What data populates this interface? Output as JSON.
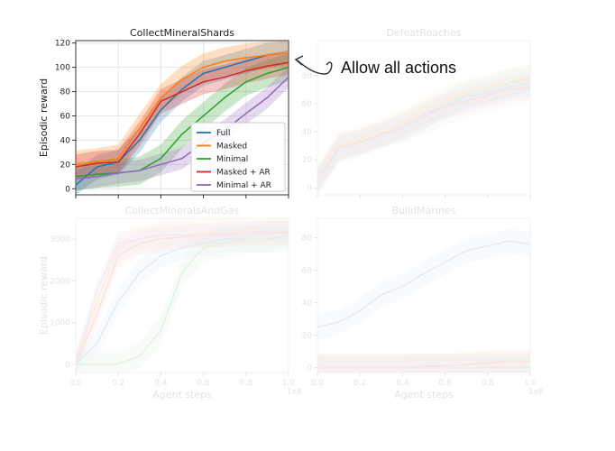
{
  "annotation": {
    "text": "Allow all actions"
  },
  "palette": {
    "Full": "#1f77b4",
    "Masked": "#ff7f0e",
    "Minimal": "#2ca02c",
    "Masked + AR": "#d62728",
    "Minimal + AR": "#9467bd"
  },
  "chart_data": [
    {
      "type": "line",
      "title": "CollectMineralShards",
      "ylabel": "Episodic reward",
      "xlabel": "",
      "xlim": [
        0,
        1
      ],
      "ylim": [
        -5,
        122
      ],
      "yticks": [
        0,
        20,
        40,
        60,
        80,
        100,
        120
      ],
      "grid": true,
      "legend": "bottom-right",
      "x": [
        0,
        0.1,
        0.2,
        0.3,
        0.4,
        0.5,
        0.6,
        0.7,
        0.8,
        0.9,
        1.0
      ],
      "series": [
        {
          "name": "Full",
          "values": [
            3,
            18,
            22,
            40,
            65,
            82,
            95,
            100,
            105,
            110,
            112
          ]
        },
        {
          "name": "Masked",
          "values": [
            20,
            22,
            25,
            50,
            75,
            90,
            100,
            105,
            108,
            110,
            112
          ]
        },
        {
          "name": "Minimal",
          "values": [
            10,
            12,
            13,
            15,
            25,
            45,
            60,
            75,
            88,
            95,
            100
          ]
        },
        {
          "name": "Masked + AR",
          "values": [
            18,
            21,
            22,
            45,
            72,
            80,
            88,
            92,
            97,
            101,
            104
          ]
        },
        {
          "name": "Minimal + AR",
          "values": [
            8,
            10,
            13,
            15,
            20,
            25,
            38,
            48,
            62,
            75,
            92
          ]
        }
      ]
    },
    {
      "type": "line",
      "title": "DefeatRoaches",
      "xlim": [
        0,
        1
      ],
      "ylim": [
        -5,
        105
      ],
      "yticks": [
        0,
        20,
        40,
        60,
        80
      ],
      "x": [
        0,
        0.1,
        0.2,
        0.3,
        0.4,
        0.5,
        0.6,
        0.7,
        0.8,
        0.9,
        1.0
      ],
      "series": [
        {
          "name": "Full",
          "values": [
            5,
            28,
            33,
            38,
            42,
            50,
            58,
            65,
            68,
            72,
            75
          ]
        },
        {
          "name": "Masked",
          "values": [
            5,
            30,
            34,
            40,
            45,
            55,
            62,
            68,
            72,
            75,
            80
          ]
        },
        {
          "name": "Minimal",
          "values": [
            5,
            28,
            32,
            38,
            44,
            52,
            60,
            66,
            70,
            75,
            78
          ]
        },
        {
          "name": "Masked + AR",
          "values": [
            5,
            29,
            33,
            38,
            44,
            52,
            58,
            62,
            66,
            70,
            72
          ]
        },
        {
          "name": "Minimal + AR",
          "values": [
            5,
            26,
            30,
            36,
            40,
            46,
            52,
            58,
            62,
            66,
            70
          ]
        }
      ]
    },
    {
      "type": "line",
      "title": "CollectMineralsAndGas",
      "ylabel": "Episodic reward",
      "xlabel": "Agent steps",
      "xlim": [
        0,
        1
      ],
      "ylim": [
        -200,
        3500
      ],
      "yticks": [
        0,
        1000,
        2000,
        3000
      ],
      "xticks": [
        "0.0",
        "0.2",
        "0.4",
        "0.6",
        "0.8",
        "1.0"
      ],
      "xscale_label": "1e8",
      "x": [
        0,
        0.1,
        0.2,
        0.3,
        0.4,
        0.5,
        0.6,
        0.7,
        0.8,
        0.9,
        1.0
      ],
      "series": [
        {
          "name": "Full",
          "values": [
            0,
            500,
            1500,
            2200,
            2600,
            2800,
            2900,
            3000,
            3000,
            3000,
            3100
          ]
        },
        {
          "name": "Masked",
          "values": [
            0,
            1500,
            2800,
            3000,
            3100,
            3100,
            3150,
            3150,
            3200,
            3200,
            3200
          ]
        },
        {
          "name": "Minimal",
          "values": [
            0,
            0,
            0,
            200,
            800,
            2200,
            2800,
            2900,
            3000,
            3000,
            3000
          ]
        },
        {
          "name": "Masked + AR",
          "values": [
            0,
            1200,
            2600,
            2900,
            3000,
            3050,
            3100,
            3100,
            3150,
            3150,
            3150
          ]
        },
        {
          "name": "Minimal + AR",
          "values": [
            0,
            1800,
            2900,
            3000,
            3100,
            3100,
            3100,
            3150,
            3150,
            3200,
            3200
          ]
        }
      ]
    },
    {
      "type": "line",
      "title": "BuildMarines",
      "xlabel": "Agent steps",
      "xlim": [
        0,
        1
      ],
      "ylim": [
        -3,
        92
      ],
      "yticks": [
        0,
        20,
        40,
        60,
        80
      ],
      "xticks": [
        "0.0",
        "0.2",
        "0.4",
        "0.6",
        "0.8",
        "1.0"
      ],
      "xscale_label": "1e8",
      "x": [
        0,
        0.1,
        0.2,
        0.3,
        0.4,
        0.5,
        0.6,
        0.7,
        0.8,
        0.9,
        1.0
      ],
      "series": [
        {
          "name": "Full",
          "values": [
            25,
            28,
            35,
            45,
            50,
            58,
            65,
            72,
            75,
            78,
            76
          ]
        },
        {
          "name": "Masked",
          "values": [
            0,
            0,
            0,
            0,
            0,
            0,
            0,
            0,
            1,
            1,
            2
          ]
        },
        {
          "name": "Minimal",
          "values": [
            0,
            0,
            0,
            0,
            0,
            0,
            0,
            0,
            0,
            0,
            0
          ]
        },
        {
          "name": "Masked + AR",
          "values": [
            0,
            0,
            0,
            0,
            0,
            1,
            1,
            2,
            3,
            4,
            4
          ]
        },
        {
          "name": "Minimal + AR",
          "values": [
            0,
            0,
            0,
            0,
            0,
            0,
            0,
            0,
            0,
            0,
            1
          ]
        }
      ]
    }
  ]
}
